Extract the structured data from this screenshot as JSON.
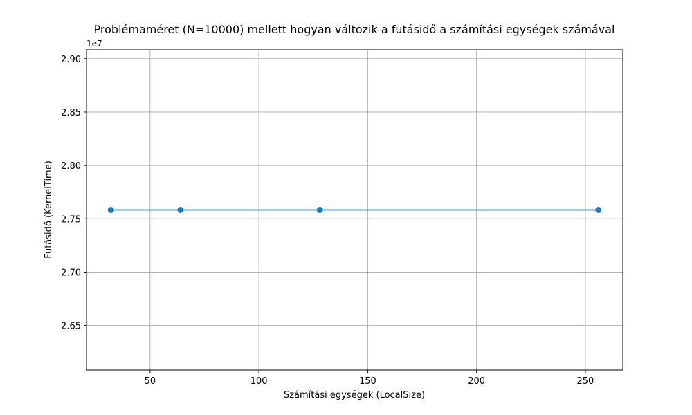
{
  "chart_data": {
    "type": "line",
    "title": "Problémaméret (N=10000) mellett hogyan változik a futásidő a számítási egységek számával",
    "xlabel": "Számítási egységek (LocalSize)",
    "ylabel": "Futásidő (KernelTime)",
    "y_offset_label": "1e7",
    "x": [
      32,
      64,
      128,
      256
    ],
    "series": [
      {
        "values": [
          27583000,
          27583000,
          27583000,
          27583000
        ]
      }
    ],
    "xlim": [
      20.8,
      267.2
    ],
    "ylim": [
      26083000,
      29083000
    ],
    "x_ticks": [
      50,
      100,
      150,
      200,
      250
    ],
    "x_tick_labels": [
      "50",
      "100",
      "150",
      "200",
      "250"
    ],
    "y_ticks": [
      26500000,
      27000000,
      27500000,
      28000000,
      28500000,
      29000000
    ],
    "y_tick_labels": [
      "2.65",
      "2.70",
      "2.75",
      "2.80",
      "2.85",
      "2.90"
    ],
    "grid": true,
    "colors": {
      "series": "#1f77b4",
      "grid": "#b0b0b0",
      "axes": "#000000"
    }
  }
}
